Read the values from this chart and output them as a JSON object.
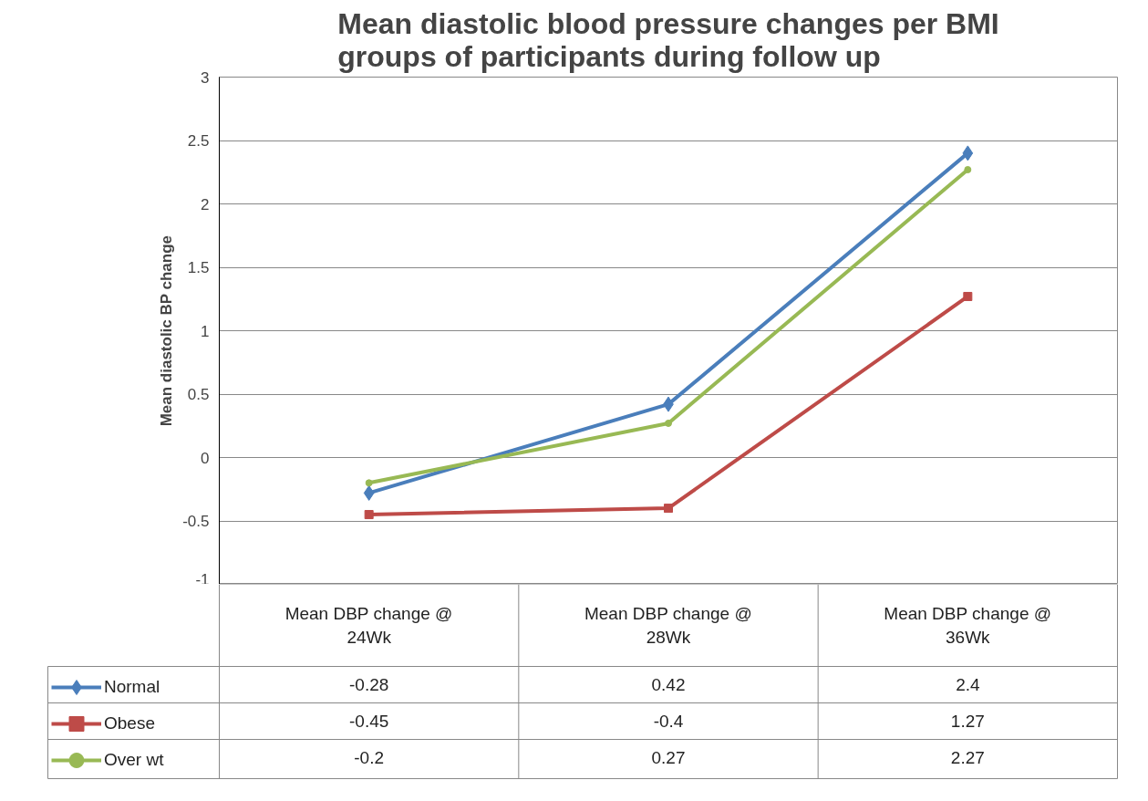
{
  "chart_data": {
    "type": "line",
    "title": "Mean diastolic blood pressure changes per BMI groups of participants during follow up",
    "ylabel": "Mean diastolic BP change",
    "categories": [
      "Mean DBP change @ 24Wk",
      "Mean DBP change @ 28Wk",
      "Mean DBP change @ 36Wk"
    ],
    "series": [
      {
        "name": "Normal",
        "color": "#4a7ebb",
        "marker": "diamond",
        "values": [
          -0.28,
          0.42,
          2.4
        ]
      },
      {
        "name": "Obese",
        "color": "#be4b48",
        "marker": "square",
        "values": [
          -0.45,
          -0.4,
          1.27
        ]
      },
      {
        "name": "Over wt",
        "color": "#98b954",
        "marker": "circle",
        "values": [
          -0.2,
          0.27,
          2.27
        ]
      }
    ],
    "ylim": [
      -1,
      3
    ],
    "yticks": [
      -1,
      -0.5,
      0,
      0.5,
      1,
      1.5,
      2,
      2.5,
      3
    ],
    "grid": "y",
    "data_labels": true,
    "legend": "bottom",
    "line_style": "solid"
  }
}
